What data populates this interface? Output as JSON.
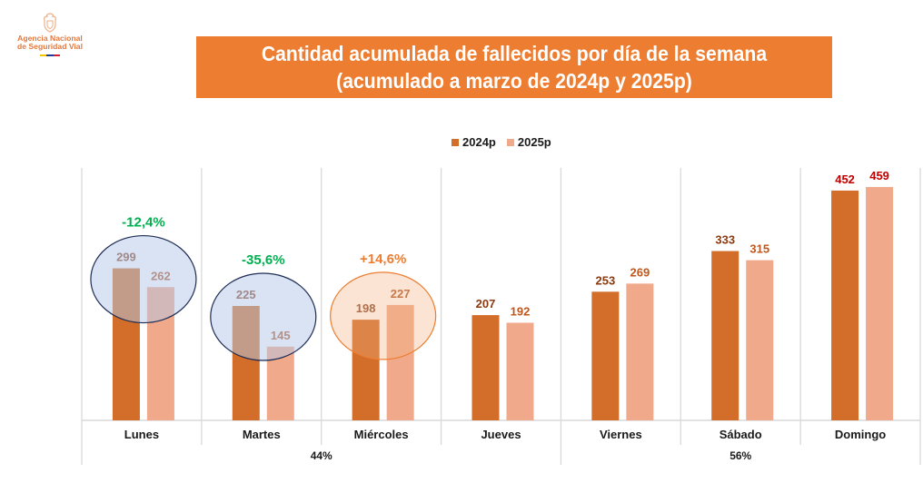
{
  "logo": {
    "line1": "Agencia Nacional",
    "line2": "de Seguridad Vial",
    "icon": "coat-of-arms-icon",
    "flag_colors": [
      "#f2c500",
      "#1f3a93",
      "#d21f2b"
    ]
  },
  "title": {
    "line1": "Cantidad acumulada de fallecidos por día de la semana",
    "line2": "(acumulado a marzo de 2024p y 2025p)"
  },
  "colors": {
    "series_2024": "#d26e2a",
    "series_2025": "#f0a98a",
    "title_bg": "#ed7d31",
    "negative_change": "#00b050",
    "positive_change": "#ed7d31",
    "max_label": "#c00000",
    "grid": "#d9d9d9"
  },
  "chart_data": {
    "type": "bar",
    "title": "Cantidad acumulada de fallecidos por día de la semana (acumulado a marzo de 2024p y 2025p)",
    "xlabel": "",
    "ylabel": "",
    "ylim": [
      0,
      500
    ],
    "grid": false,
    "legend_position": "top-center",
    "categories": [
      "Lunes",
      "Martes",
      "Miércoles",
      "Jueves",
      "Viernes",
      "Sábado",
      "Domingo"
    ],
    "series": [
      {
        "name": "2024p",
        "values": [
          299,
          225,
          198,
          207,
          253,
          333,
          452
        ]
      },
      {
        "name": "2025p",
        "values": [
          262,
          145,
          227,
          192,
          269,
          315,
          459
        ]
      }
    ],
    "group_labels": [
      {
        "label": "44%",
        "from": "Lunes",
        "to": "Jueves"
      },
      {
        "label": "56%",
        "from": "Viernes",
        "to": "Domingo"
      }
    ],
    "annotations": [
      {
        "category": "Lunes",
        "text": "-12,4%",
        "kind": "decrease",
        "highlight": "blue-ellipse"
      },
      {
        "category": "Martes",
        "text": "-35,6%",
        "kind": "decrease",
        "highlight": "blue-ellipse"
      },
      {
        "category": "Miércoles",
        "text": "+14,6%",
        "kind": "increase",
        "highlight": "orange-ellipse"
      }
    ]
  }
}
